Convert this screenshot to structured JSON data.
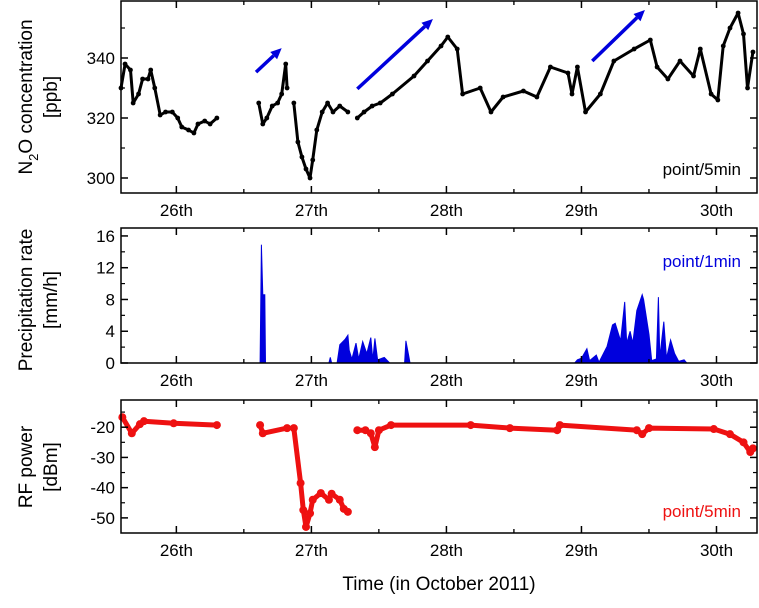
{
  "chart_data": [
    {
      "type": "scatter",
      "ylabel": "N2O concentration [ppb]",
      "ylabel_parts": {
        "main": "N",
        "sub": "2",
        "rest": "O concentration",
        "unit": "[ppb]"
      },
      "annotation": "point/5min",
      "xlim": [
        25.59,
        30.3
      ],
      "ylim": [
        295,
        359
      ],
      "yticks": [
        300,
        320,
        340
      ],
      "yminor": [
        310,
        330,
        350
      ],
      "xticks": [
        26,
        27,
        28,
        29,
        30
      ],
      "xtick_labels": [
        "26th",
        "27th",
        "28th",
        "29th",
        "30th"
      ],
      "color": "#000000",
      "segments": [
        [
          [
            25.59,
            330
          ],
          [
            25.62,
            338
          ],
          [
            25.66,
            336
          ],
          [
            25.68,
            325
          ],
          [
            25.72,
            328
          ],
          [
            25.75,
            333
          ],
          [
            25.79,
            333
          ],
          [
            25.81,
            336
          ],
          [
            25.84,
            330
          ],
          [
            25.88,
            321
          ],
          [
            25.92,
            322
          ],
          [
            25.97,
            322
          ],
          [
            26.01,
            320
          ],
          [
            26.04,
            317
          ],
          [
            26.09,
            316
          ],
          [
            26.13,
            315
          ],
          [
            26.16,
            318
          ],
          [
            26.21,
            319
          ],
          [
            26.25,
            318
          ],
          [
            26.3,
            320
          ]
        ],
        [
          [
            26.61,
            325
          ],
          [
            26.64,
            318
          ],
          [
            26.67,
            320
          ],
          [
            26.71,
            324
          ],
          [
            26.75,
            325
          ],
          [
            26.78,
            328
          ],
          [
            26.81,
            338
          ],
          [
            26.82,
            330
          ]
        ],
        [
          [
            26.87,
            325
          ],
          [
            26.9,
            312
          ],
          [
            26.93,
            307
          ],
          [
            26.96,
            303
          ],
          [
            26.99,
            300
          ],
          [
            27.01,
            306
          ],
          [
            27.04,
            316
          ],
          [
            27.08,
            322
          ],
          [
            27.12,
            325
          ],
          [
            27.16,
            322
          ],
          [
            27.21,
            324
          ],
          [
            27.27,
            322
          ]
        ],
        [
          [
            27.34,
            320
          ],
          [
            27.39,
            322
          ],
          [
            27.45,
            324
          ],
          [
            27.51,
            325
          ],
          [
            27.6,
            328
          ],
          [
            27.76,
            334
          ],
          [
            27.86,
            339
          ],
          [
            27.96,
            344
          ],
          [
            28.01,
            347
          ],
          [
            28.08,
            343
          ],
          [
            28.12,
            328
          ],
          [
            28.25,
            330
          ],
          [
            28.33,
            322
          ],
          [
            28.42,
            327
          ],
          [
            28.57,
            329
          ],
          [
            28.67,
            327
          ],
          [
            28.77,
            337
          ],
          [
            28.9,
            335
          ],
          [
            28.93,
            328
          ],
          [
            28.97,
            337
          ],
          [
            29.03,
            322
          ],
          [
            29.14,
            328
          ],
          [
            29.24,
            339
          ],
          [
            29.39,
            343
          ],
          [
            29.51,
            346
          ],
          [
            29.56,
            337
          ],
          [
            29.64,
            333
          ],
          [
            29.73,
            339
          ],
          [
            29.83,
            334
          ],
          [
            29.88,
            343
          ],
          [
            29.96,
            328
          ],
          [
            30.01,
            326
          ],
          [
            30.05,
            344
          ],
          [
            30.1,
            350
          ],
          [
            30.16,
            355
          ],
          [
            30.2,
            348
          ],
          [
            30.23,
            330
          ],
          [
            30.27,
            342
          ]
        ]
      ],
      "arrows": {
        "color": "#0000dd",
        "items": [
          {
            "from": [
              26.59,
              335.3
            ],
            "to": [
              26.78,
              343.3
            ]
          },
          {
            "from": [
              27.34,
              329.7
            ],
            "to": [
              27.9,
              353
            ]
          },
          {
            "from": [
              29.08,
              339
            ],
            "to": [
              29.47,
              356
            ]
          }
        ]
      }
    },
    {
      "type": "area",
      "ylabel": "Precipitation rate [mm/h]",
      "ylabel_parts": {
        "main": "Precipitation rate",
        "unit": "[mm/h]"
      },
      "annotation": "point/1min",
      "xlim": [
        25.59,
        30.3
      ],
      "ylim": [
        0,
        17
      ],
      "yticks": [
        0,
        4,
        8,
        12,
        16
      ],
      "yminor": [
        2,
        6,
        10,
        14
      ],
      "xticks": [
        26,
        27,
        28,
        29,
        30
      ],
      "xtick_labels": [
        "26th",
        "27th",
        "28th",
        "29th",
        "30th"
      ],
      "color": "#0000dd",
      "points": [
        [
          26.62,
          0
        ],
        [
          26.63,
          14.9
        ],
        [
          26.64,
          8.6
        ],
        [
          26.655,
          8.6
        ],
        [
          26.66,
          0
        ],
        [
          27.13,
          0
        ],
        [
          27.14,
          0.7
        ],
        [
          27.15,
          0
        ],
        [
          27.19,
          0
        ],
        [
          27.21,
          2.3
        ],
        [
          27.25,
          3.0
        ],
        [
          27.27,
          3.5
        ],
        [
          27.28,
          1.6
        ],
        [
          27.3,
          0.5
        ],
        [
          27.33,
          2.5
        ],
        [
          27.35,
          0.5
        ],
        [
          27.38,
          2.7
        ],
        [
          27.41,
          1.2
        ],
        [
          27.44,
          3.2
        ],
        [
          27.455,
          0.4
        ],
        [
          27.47,
          3.1
        ],
        [
          27.49,
          0.4
        ],
        [
          27.54,
          0.7
        ],
        [
          27.58,
          0
        ],
        [
          27.69,
          0
        ],
        [
          27.7,
          2.8
        ],
        [
          27.72,
          1.0
        ],
        [
          27.73,
          0
        ],
        [
          28.95,
          0
        ],
        [
          28.97,
          0.4
        ],
        [
          29.0,
          0.6
        ],
        [
          29.04,
          1.8
        ],
        [
          29.06,
          0.3
        ],
        [
          29.11,
          1.0
        ],
        [
          29.13,
          0.1
        ],
        [
          29.19,
          2.1
        ],
        [
          29.23,
          4.8
        ],
        [
          29.25,
          5.0
        ],
        [
          29.29,
          2.8
        ],
        [
          29.32,
          7.7
        ],
        [
          29.335,
          2.5
        ],
        [
          29.36,
          4.0
        ],
        [
          29.38,
          2.5
        ],
        [
          29.41,
          6.6
        ],
        [
          29.45,
          8.6
        ],
        [
          29.46,
          8.0
        ],
        [
          29.5,
          3.6
        ],
        [
          29.52,
          0.3
        ],
        [
          29.555,
          0.5
        ],
        [
          29.57,
          8.3
        ],
        [
          29.58,
          0.7
        ],
        [
          29.61,
          5.2
        ],
        [
          29.63,
          0.6
        ],
        [
          29.66,
          2.9
        ],
        [
          29.69,
          1.2
        ],
        [
          29.72,
          0.2
        ],
        [
          29.76,
          0.4
        ],
        [
          29.78,
          0
        ]
      ]
    },
    {
      "type": "scatter",
      "ylabel": "RF power [dBm]",
      "ylabel_parts": {
        "main": "RF power",
        "unit": "[dBm]"
      },
      "annotation": "point/5min",
      "xlabel": "Time (in October 2011)",
      "xlim": [
        25.59,
        30.3
      ],
      "ylim": [
        -55,
        -11
      ],
      "yticks": [
        -20,
        -30,
        -40,
        -50
      ],
      "yminor": [
        -15,
        -25,
        -35,
        -45
      ],
      "xticks": [
        26,
        27,
        28,
        29,
        30
      ],
      "xtick_labels": [
        "26th",
        "27th",
        "28th",
        "29th",
        "30th"
      ],
      "color": "#ee1111",
      "segments": [
        [
          [
            25.6,
            -16.7
          ],
          [
            25.67,
            -22
          ],
          [
            25.73,
            -19
          ],
          [
            25.76,
            -18
          ],
          [
            25.98,
            -18.7
          ],
          [
            26.3,
            -19.3
          ]
        ],
        [
          [
            26.62,
            -19.3
          ],
          [
            26.64,
            -22
          ],
          [
            26.82,
            -20.3
          ]
        ],
        [
          [
            26.87,
            -20.3
          ],
          [
            26.92,
            -38.5
          ],
          [
            26.94,
            -47.4
          ],
          [
            26.96,
            -53
          ],
          [
            26.99,
            -48.5
          ],
          [
            27.01,
            -44
          ],
          [
            27.07,
            -41.8
          ],
          [
            27.13,
            -44
          ],
          [
            27.15,
            -42
          ],
          [
            27.21,
            -44
          ],
          [
            27.24,
            -47
          ],
          [
            27.27,
            -48
          ]
        ],
        [
          [
            27.34,
            -21
          ],
          [
            27.4,
            -21
          ],
          [
            27.44,
            -22
          ],
          [
            27.47,
            -26.6
          ],
          [
            27.5,
            -21
          ],
          [
            27.59,
            -19.3
          ],
          [
            28.18,
            -19.3
          ],
          [
            28.47,
            -20.3
          ],
          [
            28.82,
            -21
          ],
          [
            28.84,
            -19.3
          ],
          [
            29.41,
            -21
          ],
          [
            29.45,
            -22.3
          ],
          [
            29.5,
            -20.3
          ],
          [
            29.98,
            -20.6
          ],
          [
            30.1,
            -22.3
          ],
          [
            30.2,
            -25
          ],
          [
            30.25,
            -28.2
          ],
          [
            30.27,
            -27
          ]
        ]
      ]
    }
  ]
}
